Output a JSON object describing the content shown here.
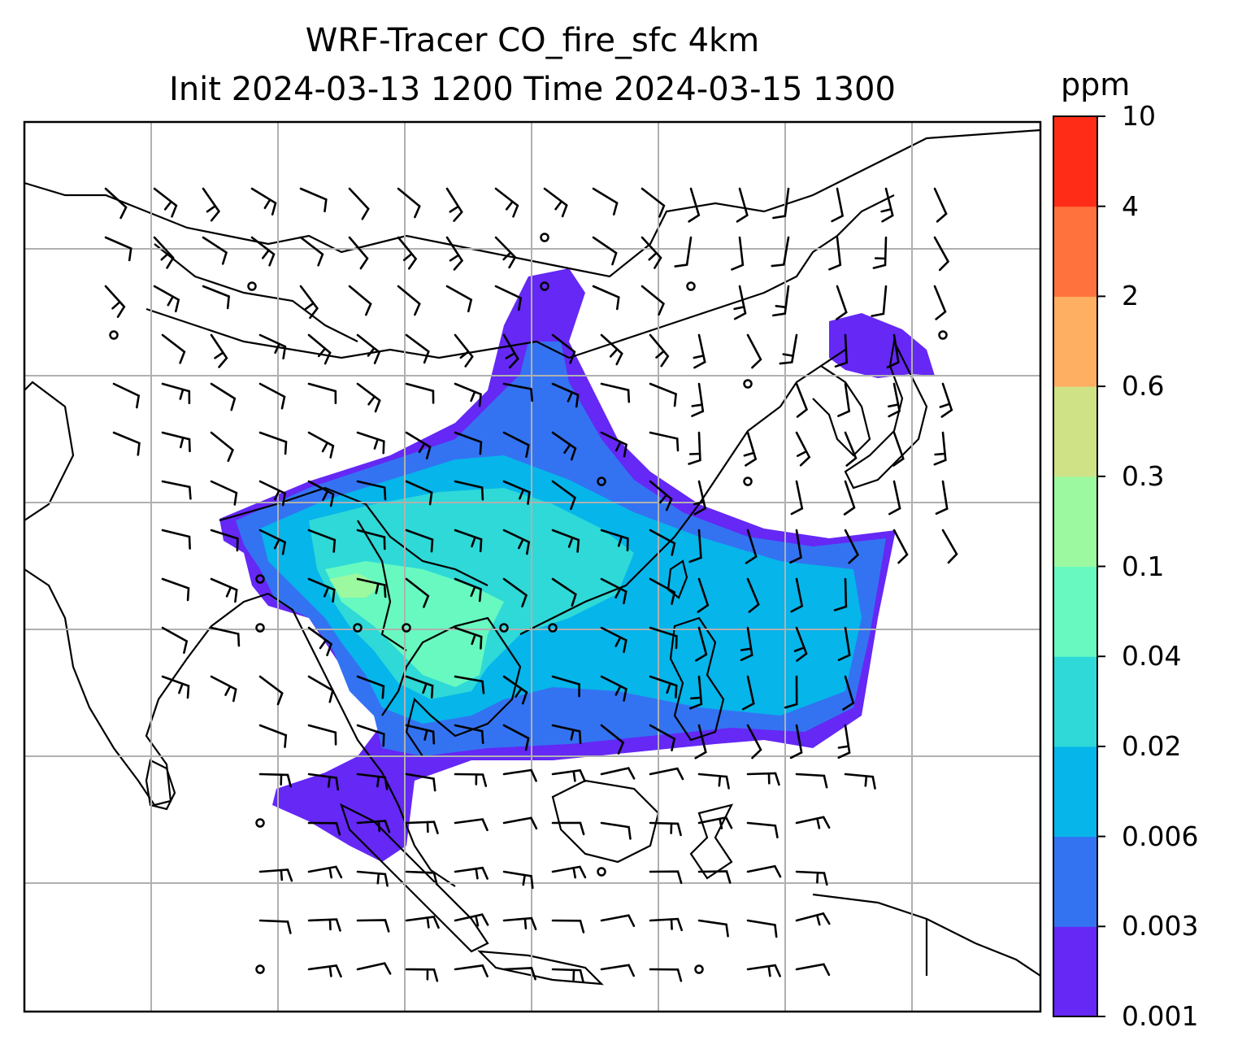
{
  "title": {
    "line1": "WRF-Tracer CO_fire_sfc 4km",
    "line2": "Init 2024-03-13 1200 Time 2024-03-15 1300"
  },
  "colorbar": {
    "unit": "ppm",
    "levels": [
      "0.001",
      "0.003",
      "0.006",
      "0.02",
      "0.04",
      "0.1",
      "0.3",
      "0.6",
      "2",
      "4",
      "10"
    ],
    "colors": [
      "#6528f5",
      "#3373f2",
      "#06b5ea",
      "#2ed9d7",
      "#68f9c0",
      "#9cf99f",
      "#cfe286",
      "#ffaf62",
      "#ff713d",
      "#ff2c18"
    ]
  },
  "map": {
    "frame_color": "#000000",
    "grid_color": "#b0b0b0",
    "barb_color": "#000000",
    "coastline_color": "#000000"
  }
}
